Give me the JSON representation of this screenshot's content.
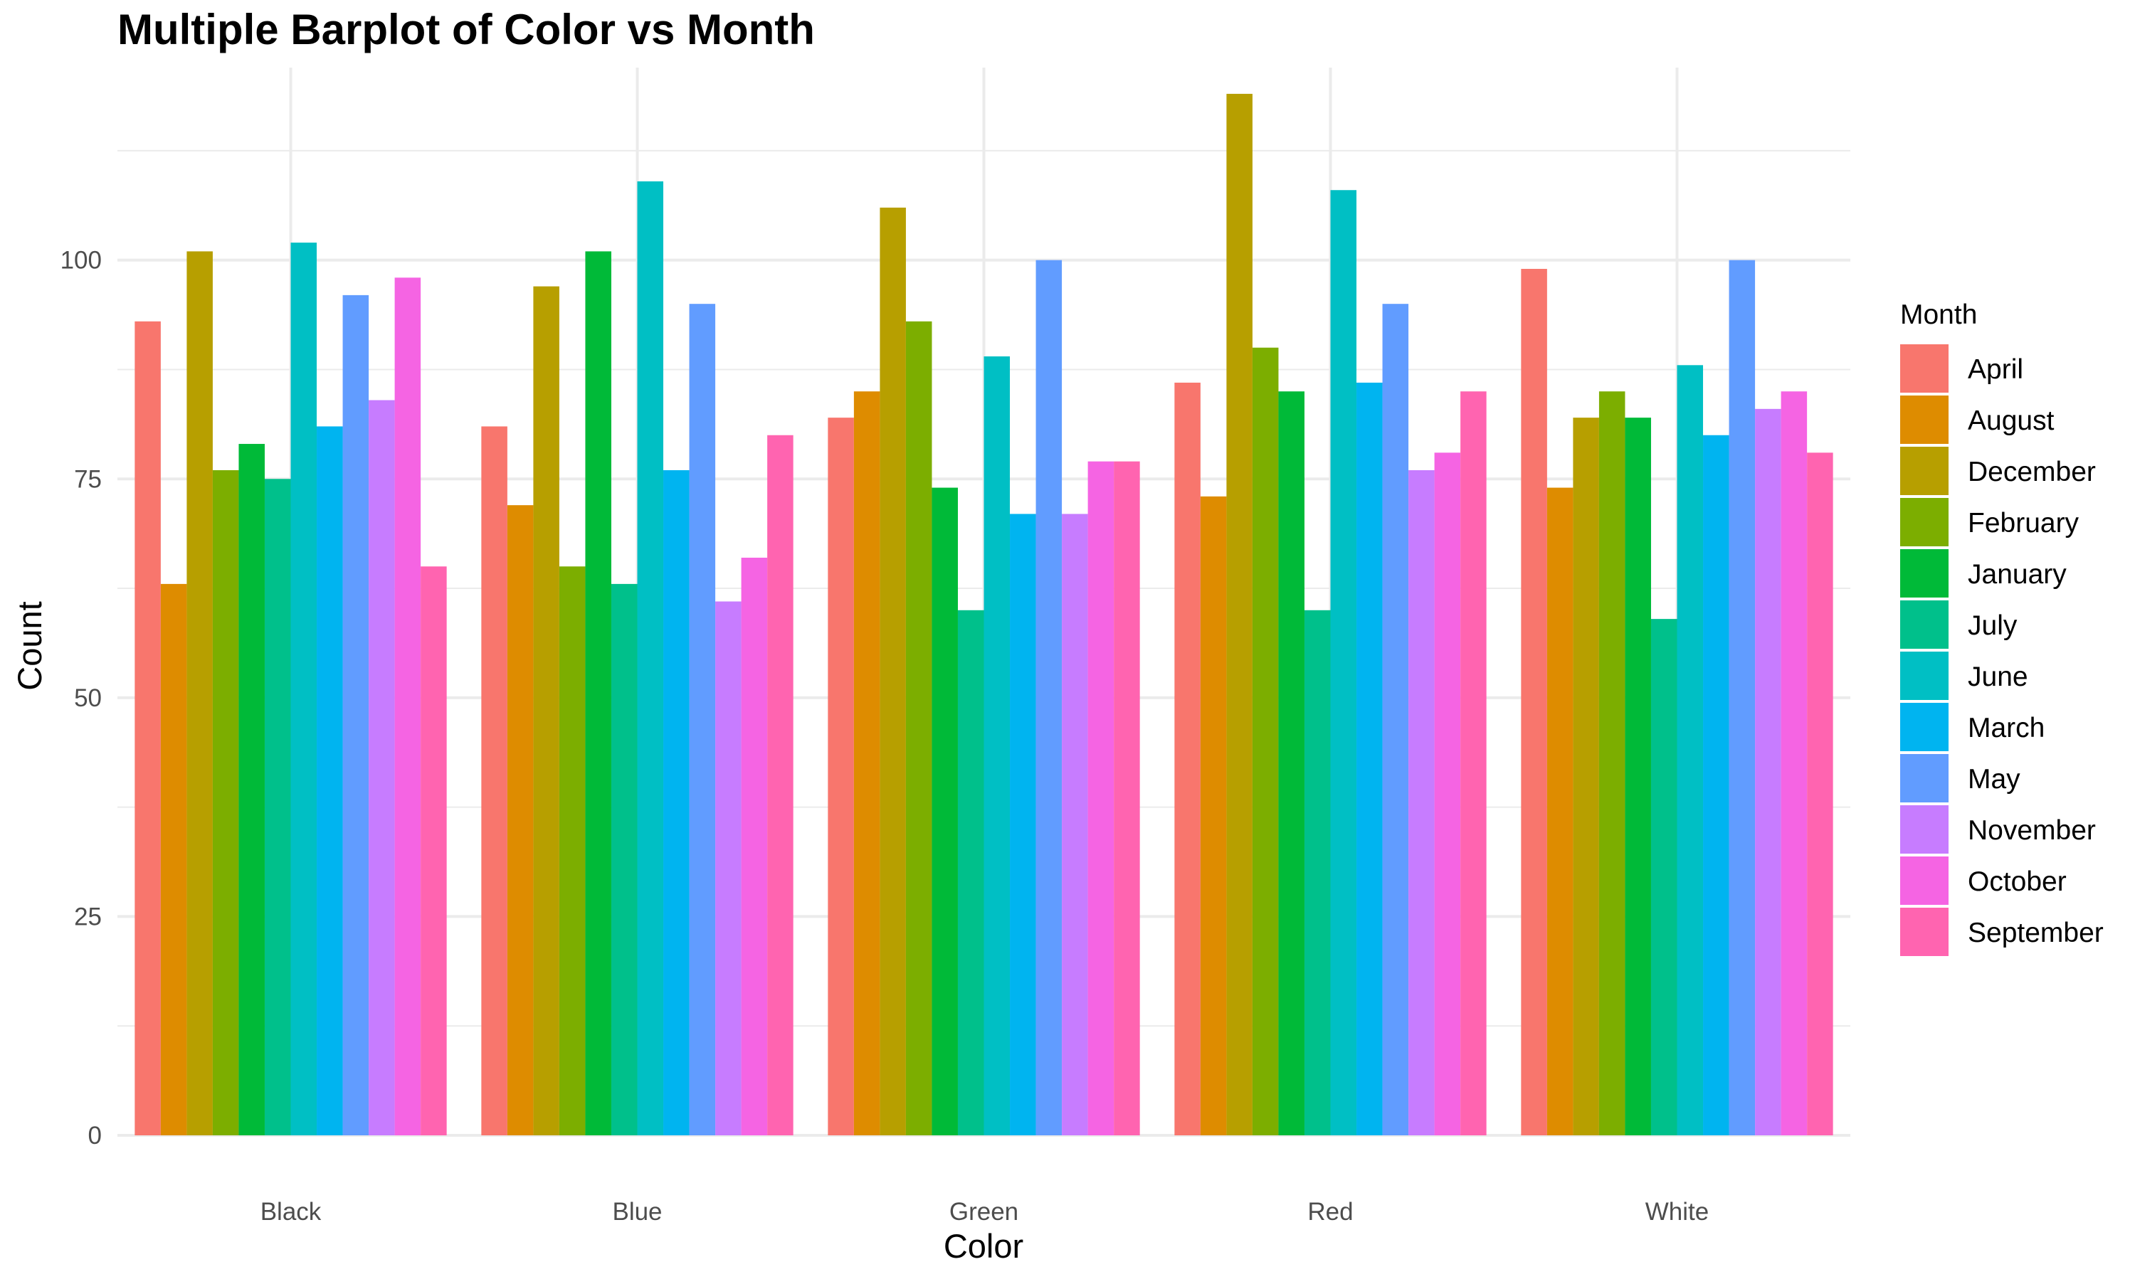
{
  "chart_data": {
    "type": "bar",
    "title": "Multiple Barplot of Color vs Month",
    "xlabel": "Color",
    "ylabel": "Count",
    "ylim": [
      0,
      122
    ],
    "yticks": [
      0,
      25,
      50,
      75,
      100
    ],
    "grid": true,
    "legend": {
      "title": "Month",
      "placement": "right"
    },
    "categories": [
      "Black",
      "Blue",
      "Green",
      "Red",
      "White"
    ],
    "series": [
      {
        "name": "April",
        "color": "#F8766D",
        "values": [
          93,
          81,
          82,
          86,
          99
        ]
      },
      {
        "name": "August",
        "color": "#DE8C00",
        "values": [
          63,
          72,
          85,
          73,
          74
        ]
      },
      {
        "name": "December",
        "color": "#B79F00",
        "values": [
          101,
          97,
          106,
          119,
          82
        ]
      },
      {
        "name": "February",
        "color": "#7CAE00",
        "values": [
          76,
          65,
          93,
          90,
          85
        ]
      },
      {
        "name": "January",
        "color": "#00BA38",
        "values": [
          79,
          101,
          74,
          85,
          82
        ]
      },
      {
        "name": "July",
        "color": "#00C08B",
        "values": [
          75,
          63,
          60,
          60,
          59
        ]
      },
      {
        "name": "June",
        "color": "#00BFC4",
        "values": [
          102,
          109,
          89,
          108,
          88
        ]
      },
      {
        "name": "March",
        "color": "#00B4F0",
        "values": [
          81,
          76,
          71,
          86,
          80
        ]
      },
      {
        "name": "May",
        "color": "#619CFF",
        "values": [
          96,
          95,
          100,
          95,
          100
        ]
      },
      {
        "name": "November",
        "color": "#C77CFF",
        "values": [
          84,
          61,
          71,
          76,
          83
        ]
      },
      {
        "name": "October",
        "color": "#F564E3",
        "values": [
          98,
          66,
          77,
          78,
          85
        ]
      },
      {
        "name": "September",
        "color": "#FF64B0",
        "values": [
          65,
          80,
          77,
          85,
          78
        ]
      }
    ]
  }
}
